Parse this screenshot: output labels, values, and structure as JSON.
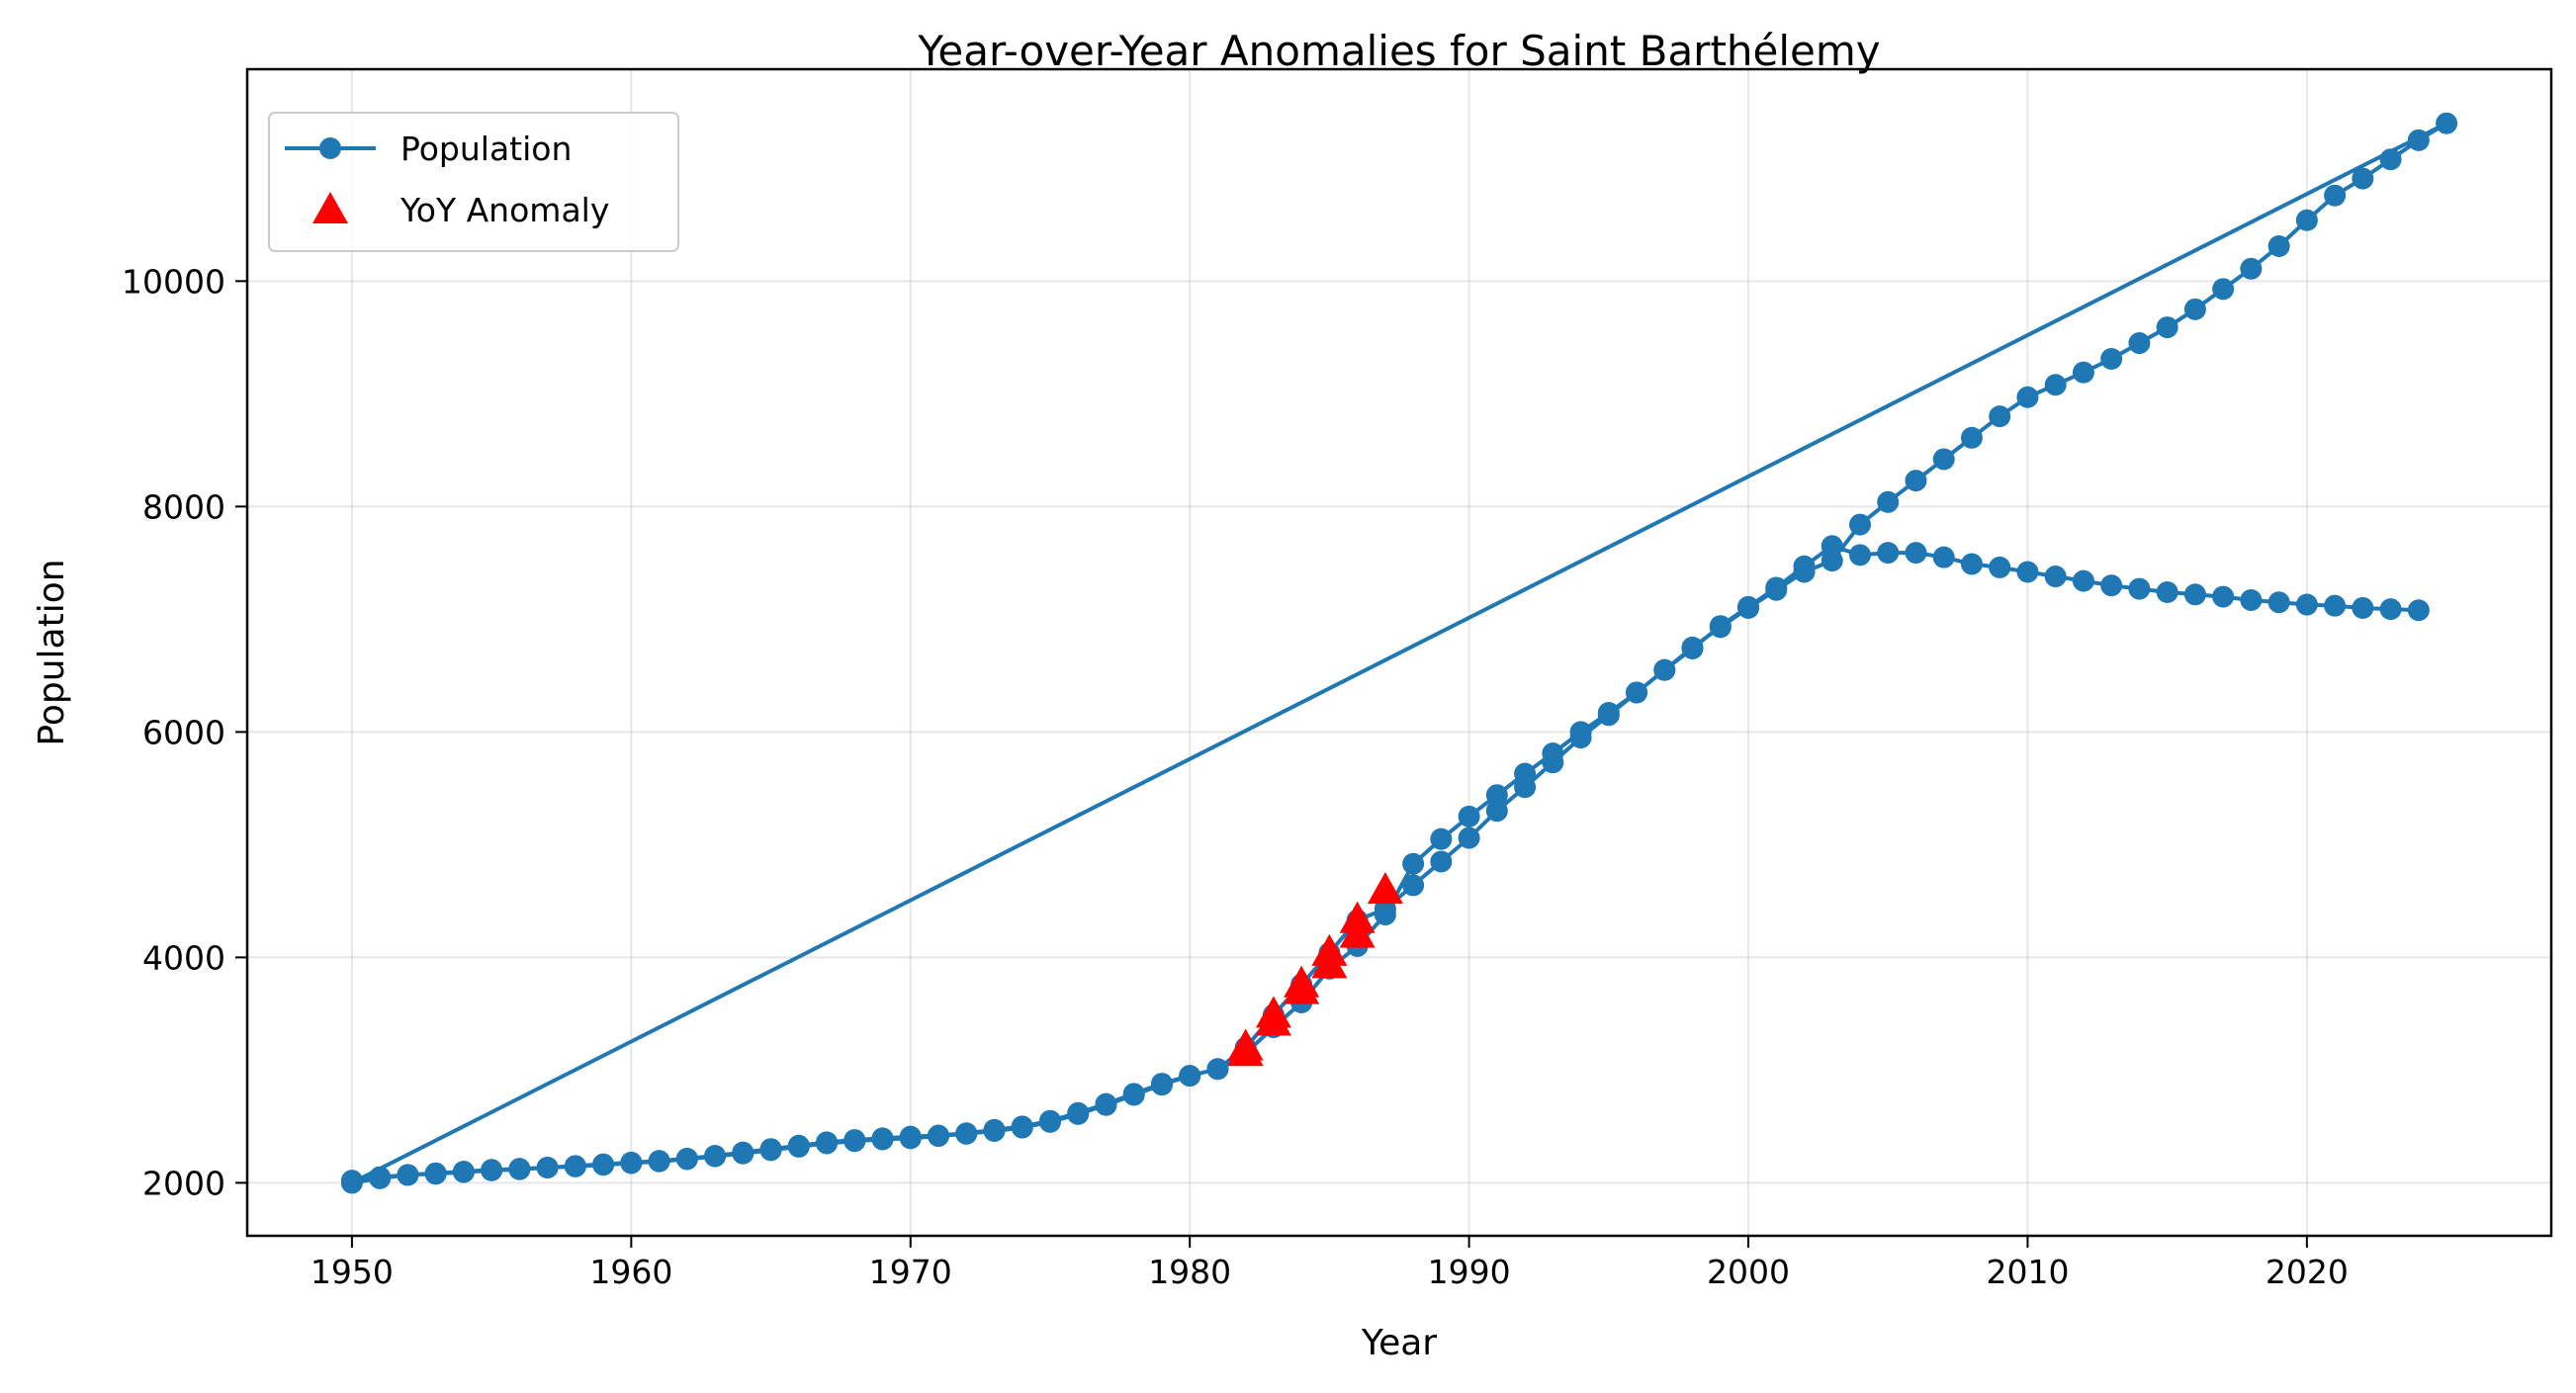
{
  "chart_data": {
    "type": "line",
    "title": "Year-over-Year Anomalies for Saint Barthélemy",
    "xlabel": "Year",
    "ylabel": "Population",
    "xlim": [
      1946.25,
      2028.75
    ],
    "ylim": [
      1530,
      11880
    ],
    "xticks": [
      1950,
      1960,
      1970,
      1980,
      1990,
      2000,
      2010,
      2020
    ],
    "yticks": [
      2000,
      4000,
      6000,
      8000,
      10000
    ],
    "grid": true,
    "legend_position": "top-left",
    "series": [
      {
        "name": "Population",
        "color": "#1f77b4",
        "marker": "circle",
        "x": [
          1950,
          1951,
          1952,
          1953,
          1954,
          1955,
          1956,
          1957,
          1958,
          1959,
          1960,
          1961,
          1962,
          1963,
          1964,
          1965,
          1966,
          1967,
          1968,
          1969,
          1970,
          1971,
          1972,
          1973,
          1974,
          1975,
          1976,
          1977,
          1978,
          1979,
          1980,
          1981,
          1982,
          1983,
          1984,
          1985,
          1986,
          1987,
          1988,
          1989,
          1990,
          1991,
          1992,
          1993,
          1994,
          1995,
          1996,
          1997,
          1998,
          1999,
          2000,
          2001,
          2002,
          2003,
          2004,
          2005,
          2006,
          2007,
          2008,
          2009,
          2010,
          2011,
          2012,
          2013,
          2014,
          2015,
          2016,
          2017,
          2018,
          2019,
          2020,
          2021,
          2022,
          2023,
          2024,
          2025,
          1950,
          1951,
          1952,
          1953,
          1954,
          1955,
          1956,
          1957,
          1958,
          1959,
          1960,
          1961,
          1962,
          1963,
          1964,
          1965,
          1966,
          1967,
          1968,
          1969,
          1970,
          1971,
          1972,
          1973,
          1974,
          1975,
          1976,
          1977,
          1978,
          1979,
          1980,
          1981,
          1982,
          1983,
          1984,
          1985,
          1986,
          1987,
          1988,
          1989,
          1990,
          1991,
          1992,
          1993,
          1994,
          1995,
          1996,
          1997,
          1998,
          1999,
          2000,
          2001,
          2002,
          2003,
          2004,
          2005,
          2006,
          2007,
          2008,
          2009,
          2010,
          2011,
          2012,
          2013,
          2014,
          2015,
          2016,
          2017,
          2018,
          2019,
          2020,
          2021,
          2022,
          2023,
          2024
        ],
        "y": [
          2020,
          2050,
          2070,
          2080,
          2095,
          2110,
          2120,
          2135,
          2145,
          2160,
          2175,
          2190,
          2210,
          2235,
          2260,
          2290,
          2320,
          2350,
          2370,
          2385,
          2395,
          2415,
          2435,
          2460,
          2490,
          2540,
          2610,
          2690,
          2780,
          2870,
          2950,
          3010,
          3200,
          3490,
          3760,
          4040,
          4330,
          4430,
          4640,
          4850,
          5060,
          5300,
          5510,
          5730,
          5950,
          6150,
          6350,
          6550,
          6750,
          6930,
          7100,
          7260,
          7420,
          7520,
          7840,
          8040,
          8230,
          8420,
          8610,
          8800,
          8970,
          9080,
          9190,
          9310,
          9450,
          9590,
          9750,
          9930,
          10110,
          10310,
          10540,
          10760,
          10910,
          11080,
          11250,
          11400,
          2000,
          2040,
          2070,
          2085,
          2100,
          2115,
          2125,
          2135,
          2150,
          2165,
          2180,
          2195,
          2215,
          2240,
          2270,
          2300,
          2330,
          2360,
          2380,
          2395,
          2410,
          2420,
          2440,
          2470,
          2500,
          2550,
          2620,
          2700,
          2790,
          2880,
          2950,
          3010,
          3150,
          3380,
          3600,
          3900,
          4100,
          4380,
          4830,
          5050,
          5250,
          5440,
          5630,
          5810,
          6000,
          6170,
          6350,
          6550,
          6740,
          6940,
          7110,
          7280,
          7470,
          7650,
          7570,
          7590,
          7590,
          7550,
          7490,
          7460,
          7420,
          7380,
          7340,
          7300,
          7270,
          7240,
          7220,
          7200,
          7170,
          7150,
          7130,
          7120,
          7100,
          7090,
          7080
        ]
      },
      {
        "name": "YoY Anomaly",
        "color": "#ff0000",
        "marker": "triangle",
        "x": [
          1982,
          1982,
          1983,
          1983,
          1984,
          1984,
          1985,
          1985,
          1986,
          1986,
          1987
        ],
        "y": [
          3150,
          3200,
          3420,
          3490,
          3700,
          3760,
          3930,
          4040,
          4200,
          4330,
          4590
        ]
      }
    ]
  }
}
